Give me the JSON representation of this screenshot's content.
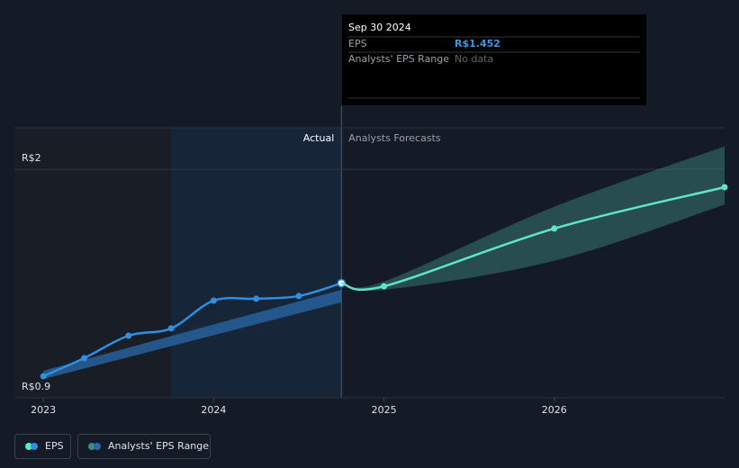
{
  "chart_data": {
    "type": "line",
    "xlim": [
      2022.83,
      2027
    ],
    "xticks": [
      2023,
      2024,
      2025,
      2026
    ],
    "ylim": [
      0.9,
      2.2
    ],
    "yticks": [
      {
        "value": 0.9,
        "label": "R$0.9"
      },
      {
        "value": 2,
        "label": "R$2"
      }
    ],
    "grid": true,
    "highlight": [
      2023.75,
      2024.75
    ],
    "region_labels": [
      "Actual",
      "Analysts Forecasts"
    ],
    "series": [
      {
        "name": "EPS",
        "color": "#2f8fe0",
        "x": [
          2023.0,
          2023.24,
          2023.5,
          2023.75,
          2024.0,
          2024.25,
          2024.5,
          2024.75
        ],
        "values": [
          1.004,
          1.091,
          1.199,
          1.234,
          1.368,
          1.377,
          1.39,
          1.452
        ]
      },
      {
        "color": "#5ee6cc",
        "x": [
          2024.75,
          2025.0,
          2026.0,
          2027.0
        ],
        "values": [
          1.452,
          1.437,
          1.715,
          1.914
        ]
      }
    ],
    "ranges": [
      {
        "name": "Analysts' EPS Range",
        "color": "#2a6aa8",
        "x": [
          2023.0,
          2024.75
        ],
        "low": [
          0.99,
          1.36
        ],
        "high": [
          1.03,
          1.42
        ]
      },
      {
        "color": "#3e8c80",
        "x": [
          2024.75,
          2025.0,
          2026.0,
          2027.0
        ],
        "low": [
          1.452,
          1.42,
          1.56,
          1.83
        ],
        "high": [
          1.452,
          1.46,
          1.82,
          2.11
        ]
      }
    ],
    "tooltip": {
      "date": "Sep 30 2024",
      "rows": [
        {
          "label": "EPS",
          "value_label": "R$1.452"
        },
        {
          "label": "Analysts' EPS Range",
          "value_label": "No data"
        }
      ]
    }
  }
}
